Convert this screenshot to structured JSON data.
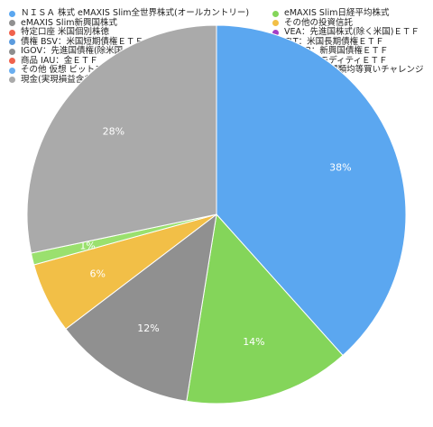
{
  "chart_data": {
    "type": "pie",
    "title": "",
    "legend_placement": "top",
    "series": [
      {
        "name": "ＮＩＳＡ 株式 eMAXIS Slim全世界株式(オールカントリー)",
        "value": 38,
        "label": "38%",
        "color": "#5ba7f0"
      },
      {
        "name": "eMAXIS Slim日経平均株式",
        "value": 14,
        "label": "14%",
        "color": "#84d55a"
      },
      {
        "name": "eMAXIS Slim新興国株式",
        "value": 12,
        "label": "12%",
        "color": "#909090"
      },
      {
        "name": "その他の投資信託",
        "value": 6,
        "label": "6%",
        "color": "#f2bf47"
      },
      {
        "name": "特定口座 米国個別株徳",
        "value": 0,
        "label": "",
        "color": "#f0624d"
      },
      {
        "name": "VEA：先進国株式(除く米国)ＥＴＦ",
        "value": 0,
        "label": "",
        "color": "#a43ec6"
      },
      {
        "name": "債権 BSV：米国短期債権ＥＴＦ",
        "value": 0,
        "label": "",
        "color": "#5b9bde"
      },
      {
        "name": "TLT：米国長期債権ＥＴＦ",
        "value": 0,
        "label": "",
        "color": "#83d05a"
      },
      {
        "name": "IGOV：先進国債権(除米国・日本含)ＥＴＦ",
        "value": 0,
        "label": "",
        "color": "#8e8e8e"
      },
      {
        "name": "VWOB：新興国債権ＥＴＦ",
        "value": 0,
        "label": "",
        "color": "#f2bf47"
      },
      {
        "name": "商品 IAU：金ＥＴＦ",
        "value": 0,
        "label": "",
        "color": "#f0624d"
      },
      {
        "name": "GSG：コモディティＥＴＦ",
        "value": 0,
        "label": "",
        "color": "#b25ad0"
      },
      {
        "name": "その他 仮想 ビットコイン積み立て",
        "value": 0,
        "label": "",
        "color": "#6aaef0"
      },
      {
        "name": "仮想通貨12種類均等買いチャレンジ",
        "value": 1,
        "label": "1%",
        "color": "#9ae06e"
      },
      {
        "name": "現金(実現損益含む)",
        "value": 28,
        "label": "28%",
        "color": "#aaaaaa"
      }
    ]
  }
}
